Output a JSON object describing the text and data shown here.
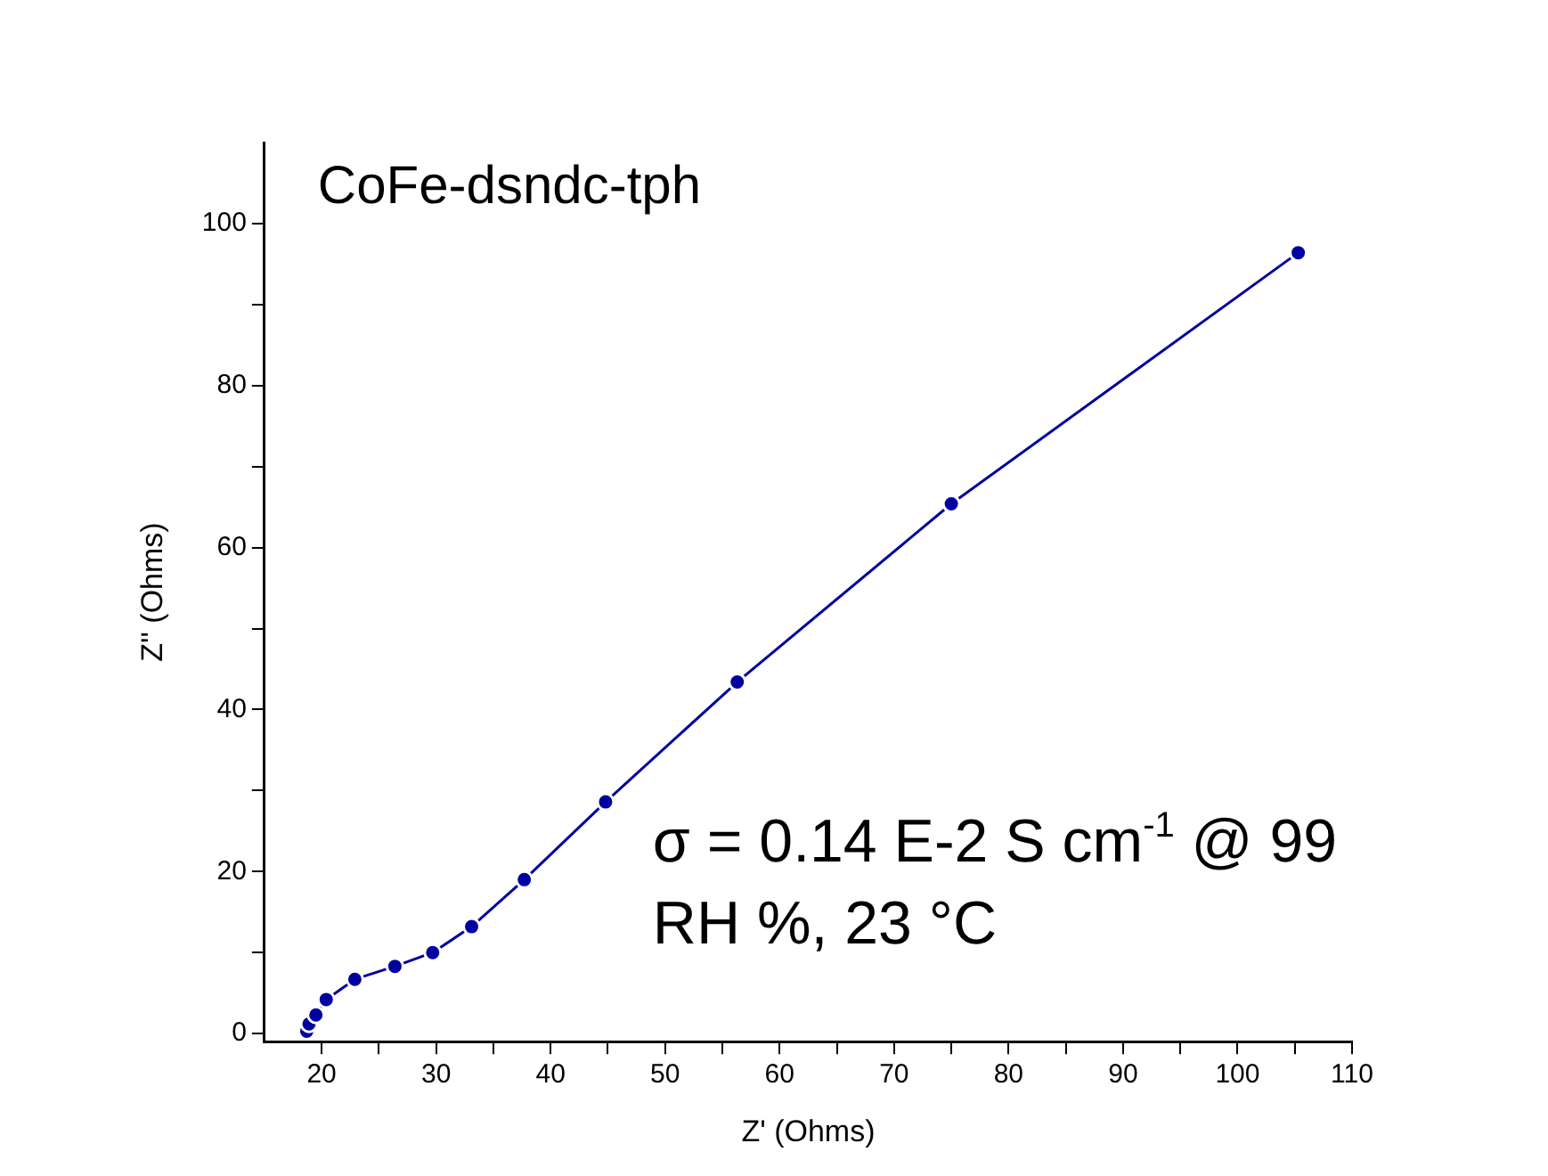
{
  "chart_data": {
    "type": "line",
    "title": "CoFe-dsndc-tph",
    "xlabel": "Z' (Ohms)",
    "ylabel": "Z'' (Ohms)",
    "annotations": [
      "σ = 0.14 E-2 S cm$^{-1}$ @ 99 RH %, 23 °C"
    ],
    "x": [
      18.7,
      18.9,
      19.5,
      20.4,
      22.9,
      26.4,
      29.7,
      33.1,
      37.7,
      44.8,
      56.3,
      75.0,
      105.3
    ],
    "series": [
      {
        "color": "#0000a0",
        "values": [
          0.3,
          1.2,
          2.3,
          4.2,
          6.7,
          8.3,
          10,
          13.2,
          19,
          28.6,
          43.4,
          65.4,
          96.4
        ]
      }
    ],
    "xlim": [
      15,
      110
    ],
    "xticks": [
      20,
      {
        "value": 25,
        "label": null
      },
      30,
      {
        "value": 35,
        "label": null
      },
      40,
      {
        "value": 45,
        "label": null
      },
      50,
      {
        "value": 55,
        "label": null
      },
      60,
      {
        "value": 65,
        "label": null
      },
      70,
      {
        "value": 75,
        "label": null
      },
      80,
      {
        "value": 85,
        "label": null
      },
      90,
      {
        "value": 95,
        "label": null
      },
      100,
      {
        "value": 105,
        "label": null
      },
      110
    ],
    "ylim": [
      -1,
      110
    ],
    "yticks": [
      0,
      {
        "value": 10,
        "label": null
      },
      20,
      {
        "value": 30,
        "label": null
      },
      40,
      {
        "value": 50,
        "label": null
      },
      60,
      {
        "value": 70,
        "label": null
      },
      80,
      {
        "value": 90,
        "label": null
      },
      100
    ],
    "grid": false,
    "legend": false,
    "marker": "circle",
    "line_style": "solid"
  }
}
